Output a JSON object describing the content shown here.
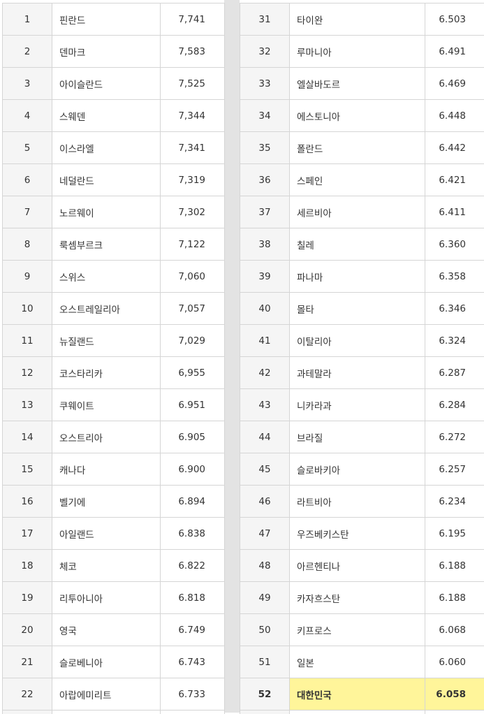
{
  "left_table": {
    "rows": [
      {
        "rank": "1",
        "country": "핀란드",
        "score": "7,741"
      },
      {
        "rank": "2",
        "country": "덴마크",
        "score": "7,583"
      },
      {
        "rank": "3",
        "country": "아이슬란드",
        "score": "7,525"
      },
      {
        "rank": "4",
        "country": "스웨덴",
        "score": "7,344"
      },
      {
        "rank": "5",
        "country": "이스라엘",
        "score": "7,341"
      },
      {
        "rank": "6",
        "country": "네덜란드",
        "score": "7,319"
      },
      {
        "rank": "7",
        "country": "노르웨이",
        "score": "7,302"
      },
      {
        "rank": "8",
        "country": "룩셈부르크",
        "score": "7,122"
      },
      {
        "rank": "9",
        "country": "스위스",
        "score": "7,060"
      },
      {
        "rank": "10",
        "country": "오스트레일리아",
        "score": "7,057"
      },
      {
        "rank": "11",
        "country": "뉴질랜드",
        "score": "7,029"
      },
      {
        "rank": "12",
        "country": "코스타리카",
        "score": "6,955"
      },
      {
        "rank": "13",
        "country": "쿠웨이트",
        "score": "6.951"
      },
      {
        "rank": "14",
        "country": "오스트리아",
        "score": "6.905"
      },
      {
        "rank": "15",
        "country": "캐나다",
        "score": "6.900"
      },
      {
        "rank": "16",
        "country": "벨기에",
        "score": "6.894"
      },
      {
        "rank": "17",
        "country": "아일랜드",
        "score": "6.838"
      },
      {
        "rank": "18",
        "country": "체코",
        "score": "6.822"
      },
      {
        "rank": "19",
        "country": "리투아니아",
        "score": "6.818"
      },
      {
        "rank": "20",
        "country": "영국",
        "score": "6.749"
      },
      {
        "rank": "21",
        "country": "슬로베니아",
        "score": "6.743"
      },
      {
        "rank": "22",
        "country": "아랍에미리트",
        "score": "6.733"
      }
    ]
  },
  "right_table": {
    "rows": [
      {
        "rank": "31",
        "country": "타이완",
        "score": "6.503"
      },
      {
        "rank": "32",
        "country": "루마니아",
        "score": "6.491"
      },
      {
        "rank": "33",
        "country": "엘살바도르",
        "score": "6.469"
      },
      {
        "rank": "34",
        "country": "에스토니아",
        "score": "6.448"
      },
      {
        "rank": "35",
        "country": "폴란드",
        "score": "6.442"
      },
      {
        "rank": "36",
        "country": "스페인",
        "score": "6.421"
      },
      {
        "rank": "37",
        "country": "세르비아",
        "score": "6.411"
      },
      {
        "rank": "38",
        "country": "칠레",
        "score": "6.360"
      },
      {
        "rank": "39",
        "country": "파나마",
        "score": "6.358"
      },
      {
        "rank": "40",
        "country": "몰타",
        "score": "6.346"
      },
      {
        "rank": "41",
        "country": "이탈리아",
        "score": "6.324"
      },
      {
        "rank": "42",
        "country": "과테말라",
        "score": "6.287"
      },
      {
        "rank": "43",
        "country": "니카라과",
        "score": "6.284"
      },
      {
        "rank": "44",
        "country": "브라질",
        "score": "6.272"
      },
      {
        "rank": "45",
        "country": "슬로바키아",
        "score": "6.257"
      },
      {
        "rank": "46",
        "country": "라트비아",
        "score": "6.234"
      },
      {
        "rank": "47",
        "country": "우즈베키스탄",
        "score": "6.195"
      },
      {
        "rank": "48",
        "country": "아르헨티나",
        "score": "6.188"
      },
      {
        "rank": "49",
        "country": "카자흐스탄",
        "score": "6.188"
      },
      {
        "rank": "50",
        "country": "키프로스",
        "score": "6.068"
      },
      {
        "rank": "51",
        "country": "일본",
        "score": "6.060"
      },
      {
        "rank": "52",
        "country": "대한민국",
        "score": "6.058",
        "highlight": true
      }
    ]
  },
  "colors": {
    "highlight": "#fff59a",
    "rank_cell_bg": "#f5f5f5",
    "grid": "#d5d5d5",
    "divider": "#e3e3e3"
  }
}
